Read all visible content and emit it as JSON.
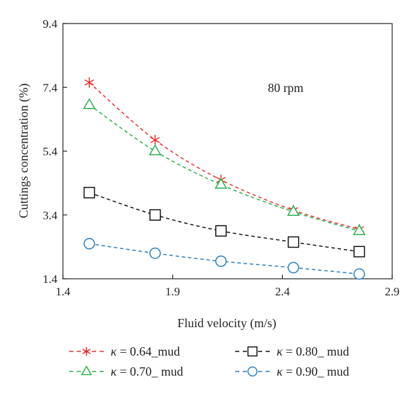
{
  "chart_data": {
    "type": "line",
    "xlabel": "Fluid velocity (m/s)",
    "ylabel": "Cuttings concentration (%)",
    "xlim": [
      1.4,
      2.9
    ],
    "ylim": [
      1.4,
      9.4
    ],
    "xticks": [
      "1.4",
      "1.9",
      "2.4",
      "2.9"
    ],
    "yticks": [
      "1.4",
      "3.4",
      "5.4",
      "7.4",
      "9.4"
    ],
    "annotation": "80 rpm",
    "grid": false,
    "legend_position": "bottom",
    "series": [
      {
        "name": "κ = 0.64_mud",
        "legend_kappa": "κ",
        "legend_rest": " = 0.64_mud",
        "color": "#e8312f",
        "marker": "asterisk",
        "x": [
          1.52,
          1.82,
          2.12,
          2.45,
          2.75
        ],
        "y": [
          7.55,
          5.75,
          4.5,
          3.55,
          2.95
        ]
      },
      {
        "name": "κ = 0.70_ mud",
        "legend_kappa": "κ",
        "legend_rest": " = 0.70_ mud",
        "color": "#2ab04a",
        "marker": "triangle",
        "x": [
          1.52,
          1.82,
          2.12,
          2.45,
          2.75
        ],
        "y": [
          6.85,
          5.4,
          4.35,
          3.5,
          2.9
        ]
      },
      {
        "name": "κ = 0.80_ mud",
        "legend_kappa": "κ",
        "legend_rest": " = 0.80_ mud",
        "color": "#111111",
        "marker": "square",
        "x": [
          1.52,
          1.82,
          2.12,
          2.45,
          2.75
        ],
        "y": [
          4.1,
          3.4,
          2.9,
          2.55,
          2.25
        ]
      },
      {
        "name": "κ = 0.90_ mud",
        "legend_kappa": "κ",
        "legend_rest": " = 0.90_ mud",
        "color": "#2a7fc1",
        "marker": "circle",
        "x": [
          1.52,
          1.82,
          2.12,
          2.45,
          2.75
        ],
        "y": [
          2.5,
          2.2,
          1.95,
          1.75,
          1.55
        ]
      }
    ]
  }
}
